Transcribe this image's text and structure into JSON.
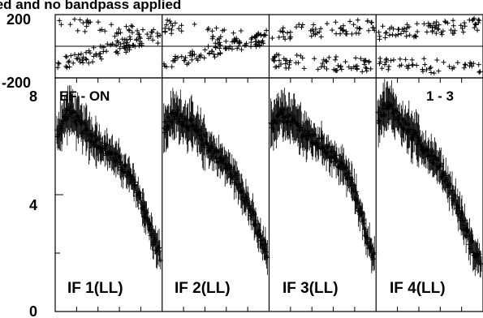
{
  "chart_data": {
    "type": "scatter",
    "title": "ied and no bandpass applied",
    "phase_yticks": [
      "200",
      "-200"
    ],
    "phase_ylim": [
      -200,
      200
    ],
    "amp_yticks": [
      "8",
      "4",
      "0"
    ],
    "amp_ylim": [
      0,
      8
    ],
    "annotation_left": "EF - ON",
    "annotation_right": "1 - 3",
    "xlim": [
      0,
      1
    ],
    "panels": [
      {
        "name": "IF 1(LL)",
        "phase_series": [
          {
            "x0": 0.0,
            "x1": 1.0,
            "y0": -120,
            "y1": 70,
            "count": 90
          },
          {
            "x0": 0.0,
            "x1": 1.0,
            "y0": 150,
            "y1": 60,
            "count": 40
          }
        ],
        "amplitude": {
          "x": [
            0.0,
            0.05,
            0.1,
            0.15,
            0.2,
            0.25,
            0.3,
            0.35,
            0.4,
            0.45,
            0.5,
            0.55,
            0.6,
            0.65,
            0.7,
            0.75,
            0.8,
            0.85,
            0.9,
            0.95,
            1.0
          ],
          "y": [
            6.1,
            6.4,
            6.8,
            6.8,
            6.5,
            6.3,
            6.1,
            5.9,
            5.8,
            5.6,
            5.5,
            5.3,
            5.1,
            4.9,
            4.6,
            4.3,
            3.9,
            3.4,
            2.8,
            2.3,
            1.9
          ]
        }
      },
      {
        "name": "IF 2(LL)",
        "phase_series": [
          {
            "x0": 0.0,
            "x1": 1.0,
            "y0": -110,
            "y1": 60,
            "count": 90
          },
          {
            "x0": 0.0,
            "x1": 1.0,
            "y0": 130,
            "y1": 40,
            "count": 40
          }
        ],
        "amplitude": {
          "x": [
            0.0,
            0.05,
            0.1,
            0.15,
            0.2,
            0.25,
            0.3,
            0.35,
            0.4,
            0.45,
            0.5,
            0.55,
            0.6,
            0.65,
            0.7,
            0.75,
            0.8,
            0.85,
            0.9,
            0.95,
            1.0
          ],
          "y": [
            6.2,
            6.5,
            6.7,
            6.7,
            6.5,
            6.4,
            6.2,
            6.0,
            5.8,
            5.6,
            5.4,
            5.2,
            5.0,
            4.8,
            4.5,
            4.2,
            3.8,
            3.3,
            2.8,
            2.3,
            2.0
          ]
        }
      },
      {
        "name": "IF 3(LL)",
        "phase_series": [
          {
            "x0": 0.0,
            "x1": 1.0,
            "y0": -90,
            "y1": -120,
            "count": 70
          },
          {
            "x0": 0.0,
            "x1": 1.0,
            "y0": 80,
            "y1": 130,
            "count": 60
          }
        ],
        "amplitude": {
          "x": [
            0.0,
            0.05,
            0.1,
            0.15,
            0.2,
            0.25,
            0.3,
            0.35,
            0.4,
            0.45,
            0.5,
            0.55,
            0.6,
            0.65,
            0.7,
            0.75,
            0.8,
            0.85,
            0.9,
            0.95,
            1.0
          ],
          "y": [
            6.3,
            6.5,
            6.7,
            6.7,
            6.5,
            6.4,
            6.2,
            6.0,
            5.9,
            5.8,
            5.7,
            5.5,
            5.3,
            5.1,
            4.9,
            4.6,
            4.2,
            3.6,
            2.9,
            2.3,
            1.9
          ]
        }
      },
      {
        "name": "IF 4(LL)",
        "phase_series": [
          {
            "x0": 0.0,
            "x1": 1.0,
            "y0": 80,
            "y1": 140,
            "count": 80
          },
          {
            "x0": 0.0,
            "x1": 1.0,
            "y0": -110,
            "y1": -140,
            "count": 50
          }
        ],
        "amplitude": {
          "x": [
            0.0,
            0.05,
            0.1,
            0.15,
            0.2,
            0.25,
            0.3,
            0.35,
            0.4,
            0.45,
            0.5,
            0.55,
            0.6,
            0.65,
            0.7,
            0.75,
            0.8,
            0.85,
            0.9,
            0.95,
            1.0
          ],
          "y": [
            6.6,
            6.9,
            7.0,
            6.9,
            6.6,
            6.4,
            6.2,
            6.0,
            5.8,
            5.6,
            5.4,
            5.2,
            4.9,
            4.6,
            4.2,
            3.8,
            3.3,
            2.8,
            2.3,
            1.9,
            1.7
          ]
        }
      }
    ]
  }
}
